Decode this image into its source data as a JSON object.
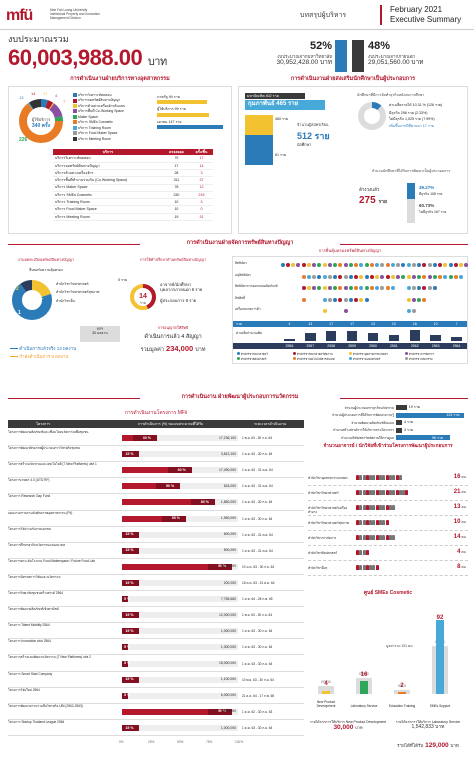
{
  "header": {
    "logo_mark": "mfü",
    "logo_lines": [
      "Mae Fah Luang University",
      "Intellectual Property and Innovation",
      "Management Division"
    ],
    "subtitle": "บทสรุปผู้บริหาร",
    "date": "February 2021",
    "doc_type": "Executive Summary"
  },
  "budget": {
    "label": "งบประมาณรวม",
    "value": "60,003,988.00",
    "unit": "บาท",
    "left_pct": "52%",
    "left_label": "งบประมาณจากมหาวิทยาลัย",
    "left_amount": "30,952,428.00",
    "right_pct": "48%",
    "right_label": "งบประมาณจากภายนอก",
    "right_amount": "29,051,560.00",
    "amount_unit": "บาท",
    "colors": {
      "left": "#2b7bb9",
      "right": "#3a3a3a"
    }
  },
  "services": {
    "title": "การดำเนินงานฝ่ายบริการทางอุตสาหกรรม",
    "donut_value": "226",
    "donut_unit_top": "ผู้ใช้บริการ",
    "donut_total": "340 ครั้ง",
    "donut_labels": [
      "13",
      "14",
      "17",
      "4",
      "7"
    ],
    "legend": [
      "บริการวิเคราะห์ทดสอบ",
      "บริการจดทรัพย์สินทางปัญญา",
      "บริการตัวอย่างเครื่องจักรต้นแบบ",
      "บริการพื้นที่ Co-Working Space",
      "Maker Space",
      "บริการ SMEs Cosmetic",
      "บริการ Training Room",
      "บริการ Food Maker Space",
      "บริการ Meeting Room"
    ],
    "legend_colors": [
      "#2b7bb9",
      "#b3182d",
      "#f2c230",
      "#8a4fa0",
      "#2fa65a",
      "#e97b26",
      "#47a9d8",
      "#9b9b9b",
      "#333333"
    ],
    "side_label_1": "ภาครัฐ",
    "side_value_1": "94 ราย",
    "side_label_2": "ผู้ใช้บริการ",
    "side_value_2": "99 ราย",
    "side_label_3": "เอกชน",
    "side_value_3": "147 ราย",
    "table_headers": [
      "บริการ",
      "ครองยอด",
      "ครั้ง/ชิ้น"
    ],
    "table_rows": [
      [
        "บริการวิเคราะห์ทดสอบ",
        "79",
        "17"
      ],
      [
        "บริการจดทรัพย์สินทางปัญญา",
        "17",
        "14"
      ],
      [
        "บริการตัวอย่างเครื่องจักร",
        "28",
        "3"
      ],
      [
        "บริการพื้นที่ทำงานร่วมกัน (Co Working Space)",
        "311",
        "37"
      ],
      [
        "บริการ Maker Space",
        "78",
        "12"
      ],
      [
        "บริการ SMEs Cosmetic",
        "230",
        "215"
      ],
      [
        "บริการ Training Room",
        "10",
        "3"
      ],
      [
        "บริการ Food Maker Space",
        "10",
        "0"
      ],
      [
        "บริการ Meeting Room",
        "19",
        "31"
      ]
    ]
  },
  "entrepreneur": {
    "title": "การดำเนินงานฝ่ายส่งเสริมนักศึกษาเป็นผู้ประกอบการ",
    "box_top": "มหาบัณฑิต 402 ราย",
    "box_main": "กุมภาพันธ์ 465 ราย",
    "course_label": "จำนวนผู้สมัครเรียน",
    "stat1_label": "460 ราย",
    "stat2_label": "512 ราย",
    "stat2_sub": "นักศึกษา",
    "stat3_label": "61 ราย",
    "right_title": "นักศึกษาที่มีการจัดทำธุรกิจหลังจบการศึกษา",
    "income_label": "ค่าเฉลี่ยรายได้ 10.31 % (126 ราย)",
    "row1": "มีธุรกิจ   298 ราย  (2.33%)",
    "row2": "ไม่มีธุรกิจ  1,025 ราย  (7.99%)",
    "row3": "เพิ่มขึ้นจากปีที่ผ่านมา 17 ราย",
    "right_title2": "จำนวนนักศึกษาที่ได้รับการพัฒนาเป็นผู้ประกอบการ",
    "total_label": "ล้างวงแล้ว",
    "total_value": "275",
    "total_unit": "ราย",
    "pct1": "39.27%",
    "pct1_label": "มีธุรกิจ 108 ราย",
    "pct2": "60.73%",
    "pct2_label": "ไม่มีธุรกิจ 167 ราย"
  },
  "ip": {
    "title": "การดำเนินงานฝ่ายจัดการทรัพย์สินทางปัญญา",
    "left_title": "งานจดทะเบียนทรัพย์สินทางปัญญา",
    "left_sub": "ยื่นขอรับความคุ้มครอง",
    "donut_left_labels": [
      "2",
      "7",
      "1"
    ],
    "donut_left_texts": [
      "สำนักวิชาวิทยาศาสตร์",
      "สำนักวิชาวิทยาศาสตร์สุขภาพ",
      "สำนักวิชาอื่น"
    ],
    "kpi_label": "KPI",
    "kpi_value": "30 ผลงาน",
    "done_label": "ดำเนินการแล้วจริง 13 ผลงาน",
    "progress_label": "กำลังดำเนินการ 8 ผลงาน",
    "middle_title": "การให้คำปรึกษาด้านทรัพย์สินทางปัญญา",
    "middle_center": "14",
    "middle_center_unit": "ราย",
    "middle_left": "5 ราย",
    "middle_r1": "อาจารย์/นักศึกษา",
    "middle_r1b": "บุคลากรภายนอก 6 ราย",
    "middle_r2": "ผู้ประกอบการ 8 ราย",
    "license_title": "การอนุญาตให้สิทธิ",
    "license_done": "ดำเนินการแล้ว 4 สัญญา",
    "license_value_label": "รวมมูลค่า",
    "license_value": "234,000",
    "license_unit": "บาท",
    "grid_title": "การยื่นคุ้มครองทรัพย์สินทางปัญญา",
    "grid_rows": [
      "สิทธิบัตร",
      "อนุสิทธิบัตร",
      "สิทธิบัตรการออกแบบผลิตภัณฑ์",
      "ลิขสิทธิ์",
      "เครื่องหมายการค้า"
    ],
    "grid_totals_label": "รวม",
    "grid_totals": [
      "4",
      "13",
      "17",
      "17",
      "13",
      "10",
      "18",
      "10",
      "7"
    ],
    "grid_pct_label": "ค่าเฉลี่ยจำนวนเพิ่ม",
    "grid_years": [
      "2556",
      "2557",
      "2558",
      "2559",
      "2560",
      "2561",
      "2562",
      "2563",
      "2564"
    ],
    "grid_legend": [
      "สำนักวิชาวิทยาศาสตร์",
      "สำนักวิชาวิทยาศาสตร์สุขภาพ",
      "สำนักวิชาอุตสาหกรรมเกษตร",
      "สำนักวิชาการจัดการ",
      "สำนักวิชาศิลปศาสตร์",
      "สำนักวิชาเทคโนโลยีสารสนเทศ",
      "สำนักวิชาแพทยศาสตร์",
      "สำนักวิชานวัตกรรม"
    ]
  },
  "projects": {
    "title": "การดำเนินงาน ฝ่ายพัฒนาผู้ประกอบการนวัตกรรม",
    "sub_title": "การดำเนินงานโครงการ MFii",
    "headers": [
      "โครงการ",
      "การดำเนินการ (%) ของงบประมาณที่ได้รับ",
      "ระยะเวลาดำเนินงาน"
    ],
    "rows": [
      {
        "name": "โครงการพัฒนาผลิตภัณฑ์และเชื่อมโยงนวัตกรรมเพื่อชุมชน",
        "pct": 30,
        "amount": "17,236,100",
        "period": "1 พ.ย. 63 - 30 ก.ย. 64"
      },
      {
        "name": "โครงการพัฒนาศักยภาพผู้ประกอบการวิสาหกิจชุมชน",
        "pct": 15,
        "amount": "3,812,100",
        "period": "1 ต.ค. 63 - 30 ก.ย. 64"
      },
      {
        "name": "โครงการสร้างนวัตกรรมและเทคโนโลยี (7 New Platforms) เฟส 1",
        "pct": 60,
        "amount": "17,490,000",
        "period": "1 ต.ค. 63 - 31 ต.ค. 64"
      },
      {
        "name": "โครงการเกษตร 4.0 (UTD RF)",
        "pct": 50,
        "amount": "624,000",
        "period": "1 ต.ค. 63 - 31 ต.ค. 64"
      },
      {
        "name": "โครงการ Research Gap Fund",
        "pct": 80,
        "amount": "1,850,000",
        "period": "1 ต.ค. 63 - 30 ก.ย. 64"
      },
      {
        "name": "แผนงานการยกระดับศักยภาพอุตสาหกรรม (P4)",
        "pct": 55,
        "amount": "1,950,000",
        "period": "1 ต.ค. 63 - 30 ก.ย. 64"
      },
      {
        "name": "โครงการวิจัยร่วมกับภาคเอกชน",
        "pct": 15,
        "amount": "600,000",
        "period": "1 ต.ค. 63 - 31 ต.ค. 64"
      },
      {
        "name": "โครงการศึกษาธุรกิจนวัตกรรมแห่งอนาคต",
        "pct": 15,
        "amount": "500,000",
        "period": "1 ต.ค. 63 - 31 ต.ค. 64"
      },
      {
        "name": "โครงการยกระดับโรงงาน Food Makerspace / Future Food Lab",
        "pct": 95,
        "amount": "5,700,000",
        "period": "10 ม.ค. 63 - 30 ก.ย. 64"
      },
      {
        "name": "โครงการนิทรรศการวิจัยและนวัตกรรม",
        "pct": 15,
        "amount": "200,000",
        "period": "15 ต.ค. 63 - 31 ต.ค. 64"
      },
      {
        "name": "โครงการวิทยาลัยชุมชนสร้างสรรค์ 2564",
        "pct": 5,
        "amount": "7,755,660",
        "period": "1 ต.ค. 64 - 28 ก.พ. 65"
      },
      {
        "name": "โครงการพัฒนาผลิตภัณฑ์เชิงพาณิชย์",
        "pct": 15,
        "amount": "12,000,000",
        "period": "1 พ.ย. 63 - 30 ก.ย. 64"
      },
      {
        "name": "โครงการ Talent Mobility 2564",
        "pct": 15,
        "amount": "1,000,000",
        "period": "1 ต.ค. 63 - 30 ก.ย. 64"
      },
      {
        "name": "โครงการ Innovation club 2564",
        "pct": 5,
        "amount": "1,300,000",
        "period": "1 ต.ค. 63 - 30 ก.ย. 64"
      },
      {
        "name": "โครงการสร้างและพัฒนานวัตกรรม (7 New Platforms) เฟส 2",
        "pct": 5,
        "amount": "15,000,000",
        "period": "1 ต.ค. 63 - 30 ก.ย. 64"
      },
      {
        "name": "โครงการ Smart Start Company",
        "pct": 15,
        "amount": "1,100,000",
        "period": "10 พ.ย. 63 - 30 ก.ย. 64"
      },
      {
        "name": "โครงการวิจัยใหม่ 2564",
        "pct": 5,
        "amount": "6,000,000",
        "period": "21 ธ.ค. 64 - 17 ก.พ. 65"
      },
      {
        "name": "โครงการพัฒนาความร่วมมือวิสาหกิจ UBI (2562-2563)",
        "pct": 95,
        "amount": "1,640,000",
        "period": "1 ต.ค. 62 - 30 ก.ย. 63"
      },
      {
        "name": "โครงการ Startup Thailand League 2564",
        "pct": 15,
        "amount": "1,000,000",
        "period": "1 ต.ค. 63 - 30 ก.ย. 64"
      }
    ],
    "axis_ticks": [
      "0%",
      "25%",
      "50%",
      "75%",
      "100%"
    ]
  },
  "startup": {
    "bars": [
      {
        "label": "จำนวนผู้ประกอบการธุรกิจนวัตกรรม",
        "value": "19 ราย",
        "frac": 0.15
      },
      {
        "label": "จำนวนผู้ประกอบการที่ได้รับการพัฒนาความรู้",
        "value": "124 ราย",
        "frac": 0.95
      },
      {
        "label": "จำนวนพัฒนาผลิตภัณฑ์ต้นแบบ",
        "value": "4 ราย",
        "frac": 0.05
      },
      {
        "label": "จำนวนสร้างสรรค์การให้บริการตามโครงการ",
        "value": "4 ราย",
        "frac": 0.05
      },
      {
        "label": "จำนวนบริษัท/สตาร์ทอัพภายใต้การดูแล",
        "value": "96 ราย",
        "frac": 0.75
      }
    ],
    "title": "จำนวนอาจารย์ / นักวิจัยที่เข้าร่วมโครงการพัฒนาผู้ประกอบการ",
    "people": [
      {
        "label": "สำนักวิชาอุตสาหกรรมเกษตร",
        "value": "16",
        "n": 14
      },
      {
        "label": "สำนักวิชาวิทยาศาสตร์",
        "value": "21",
        "n": 16
      },
      {
        "label": "สำนักวิชาวิทยาศาสตร์เครื่องสำอาง",
        "value": "13",
        "n": 12
      },
      {
        "label": "สำนักวิชาวิทยาศาสตร์สุขภาพ",
        "value": "10",
        "n": 10
      },
      {
        "label": "สำนักวิชาการจัดการ",
        "value": "14",
        "n": 12
      },
      {
        "label": "สำนักวิชาศิลปศาสตร์",
        "value": "4",
        "n": 4
      },
      {
        "label": "สำนักวิชาอื่นๆ",
        "value": "8",
        "n": 7
      }
    ],
    "people_unit": "คน"
  },
  "sme": {
    "title": "ศูนย์ SMEs Cosmetic",
    "kpis": [
      "KPI 10",
      "KPI 20",
      "KPI 5",
      "KPI 60"
    ],
    "groups": [
      "New Product Development",
      "Laboratory Service",
      "Education Training",
      "SMEs Support"
    ],
    "values": [
      "4",
      "16",
      "2",
      "92"
    ],
    "mid_label": "มูลค่ารวม 191 คน",
    "income1_label": "รายได้จากการให้บริการ New Product Development",
    "income1_value": "30,000",
    "income1_unit": "บาท",
    "income2_label": "รายได้จากการให้บริการ Laboratory Service",
    "income2_value": "1,542,833",
    "income2_unit": "บาท",
    "total_label": "รายได้ที่ได้รับ",
    "total_value": "129,000",
    "total_unit": "บาท"
  }
}
